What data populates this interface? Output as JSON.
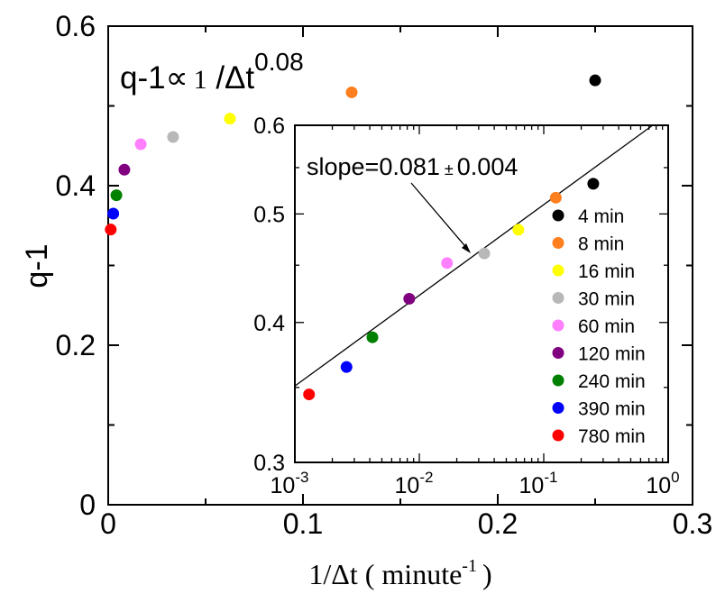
{
  "chart_data": [
    {
      "type": "scatter",
      "xlabel": "1/Δt ( minute",
      "xlabel_sup": "-1",
      "xlabel_close": ")",
      "ylabel": "q-1",
      "xlim": [
        0,
        0.3
      ],
      "ylim": [
        0,
        0.6
      ],
      "x_ticks": [
        0,
        0.1,
        0.2,
        0.3
      ],
      "x_tick_labels": [
        "0",
        "0.1",
        "0.2",
        "0.3"
      ],
      "y_ticks": [
        0,
        0.2,
        0.4,
        0.6
      ],
      "y_tick_labels": [
        "0",
        "0.2",
        "0.4",
        "0.6"
      ],
      "annotation": {
        "prefix": "q-1",
        "symbol": "∝",
        "one": "1",
        "slash": " /Δt",
        "exponent": "0.08"
      },
      "points": [
        {
          "label": "4 min",
          "x": 0.25,
          "y": 0.532,
          "color": "#000000"
        },
        {
          "label": "8 min",
          "x": 0.125,
          "y": 0.517,
          "color": "#ff7f1e"
        },
        {
          "label": "16 min",
          "x": 0.0625,
          "y": 0.484,
          "color": "#ffff00"
        },
        {
          "label": "30 min",
          "x": 0.0333,
          "y": 0.461,
          "color": "#b8b8b8"
        },
        {
          "label": "60 min",
          "x": 0.0167,
          "y": 0.452,
          "color": "#ff80ff"
        },
        {
          "label": "120 min",
          "x": 0.0083,
          "y": 0.42,
          "color": "#800080"
        },
        {
          "label": "240 min",
          "x": 0.0042,
          "y": 0.388,
          "color": "#008000"
        },
        {
          "label": "390 min",
          "x": 0.0026,
          "y": 0.365,
          "color": "#0000ff"
        },
        {
          "label": "780 min",
          "x": 0.0013,
          "y": 0.345,
          "color": "#ff0000"
        }
      ]
    },
    {
      "type": "scatter",
      "x_scale": "log",
      "y_scale": "log",
      "xlim": [
        0.001,
        1
      ],
      "ylim": [
        0.3,
        0.6
      ],
      "x_tick_labels": [
        {
          "base": "10",
          "exp": "-3",
          "value": 0.001
        },
        {
          "base": "10",
          "exp": "-2",
          "value": 0.01
        },
        {
          "base": "10",
          "exp": "-1",
          "value": 0.1
        },
        {
          "base": "10",
          "exp": "0",
          "value": 1
        }
      ],
      "y_ticks": [
        0.3,
        0.4,
        0.5,
        0.6
      ],
      "y_tick_labels": [
        "0.3",
        "0.4",
        "0.5",
        "0.6"
      ],
      "fit_line": {
        "slope": 0.081,
        "x": [
          0.001,
          0.75
        ],
        "y": [
          0.351,
          0.6
        ]
      },
      "annotation": {
        "text": "slope=0.081",
        "pm": "±",
        "err": "0.004"
      },
      "legend_position": "right",
      "points": [
        {
          "label": "4 min",
          "x": 0.25,
          "y": 0.532,
          "color": "#000000"
        },
        {
          "label": "8 min",
          "x": 0.125,
          "y": 0.517,
          "color": "#ff7f1e"
        },
        {
          "label": "16 min",
          "x": 0.0625,
          "y": 0.484,
          "color": "#ffff00"
        },
        {
          "label": "30 min",
          "x": 0.0333,
          "y": 0.461,
          "color": "#b8b8b8"
        },
        {
          "label": "60 min",
          "x": 0.0167,
          "y": 0.452,
          "color": "#ff80ff"
        },
        {
          "label": "120 min",
          "x": 0.0083,
          "y": 0.42,
          "color": "#800080"
        },
        {
          "label": "240 min",
          "x": 0.0042,
          "y": 0.388,
          "color": "#008000"
        },
        {
          "label": "390 min",
          "x": 0.0026,
          "y": 0.365,
          "color": "#0000ff"
        },
        {
          "label": "780 min",
          "x": 0.0013,
          "y": 0.345,
          "color": "#ff0000"
        }
      ]
    }
  ]
}
